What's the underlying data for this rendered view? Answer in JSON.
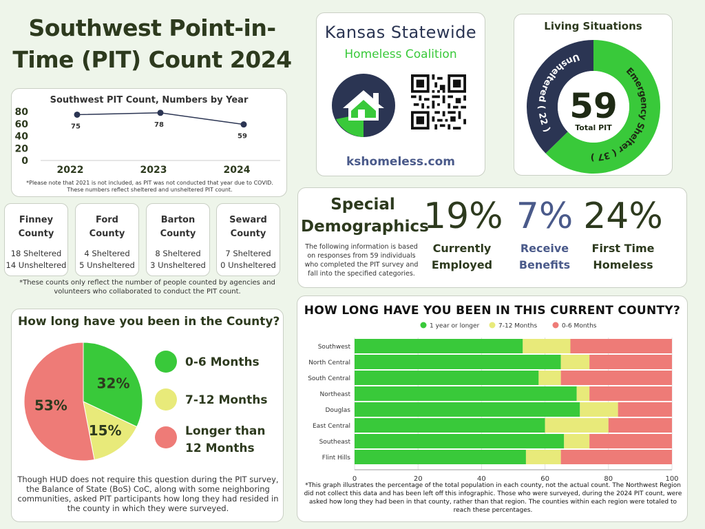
{
  "page_title": "Southwest Point-in-Time (PIT) Count 2024",
  "org": {
    "name_line1": "Kansas Statewide",
    "name_line2": "Homeless Coalition",
    "website": "kshomeless.com"
  },
  "pit_by_year": {
    "title": "Southwest PIT Count, Numbers by Year",
    "note": "*Please note that 2021 is not included, as PIT was not conducted that year due to COVID. These numbers reflect sheltered and unsheltered PIT count."
  },
  "counties": [
    {
      "name_line1": "Finney",
      "name_line2": "County",
      "sheltered": "18 Sheltered",
      "unsheltered": "14 Unsheltered"
    },
    {
      "name_line1": "Ford",
      "name_line2": "County",
      "sheltered": "4 Sheltered",
      "unsheltered": "5 Unsheltered"
    },
    {
      "name_line1": "Barton",
      "name_line2": "County",
      "sheltered": "8 Sheltered",
      "unsheltered": "3 Unsheltered"
    },
    {
      "name_line1": "Seward",
      "name_line2": "County",
      "sheltered": "7 Sheltered",
      "unsheltered": "0 Unsheltered"
    }
  ],
  "county_note": "*These counts only reflect the number of people counted by agencies and volunteers who collaborated to conduct the PIT count.",
  "living": {
    "title": "Living Situations",
    "total": "59",
    "total_label": "Total PIT"
  },
  "special": {
    "title_line1": "Special",
    "title_line2": "Demographics",
    "desc": "The following information is based on responses from 59 individuals who completed the PIT survey and fall into the specified categories.",
    "stats": [
      {
        "value": "19%",
        "label_line1": "Currently",
        "label_line2": "Employed",
        "color": "#2d3a1e"
      },
      {
        "value": "7%",
        "label_line1": "Receive",
        "label_line2": "Benefits",
        "color": "#4a5a8a"
      },
      {
        "value": "24%",
        "label_line1": "First Time",
        "label_line2": "Homeless",
        "color": "#2d3a1e"
      }
    ]
  },
  "county_time": {
    "title": "How long have you been in the County?",
    "note": "Though HUD does not require this question during the PIT survey, the Balance of State (BoS) CoC, along with some neighboring communities, asked PIT participants how long they had resided in the county in which they were surveyed."
  },
  "region_time": {
    "title": "HOW LONG HAVE YOU BEEN IN THIS CURRENT COUNTY?",
    "note": "*This graph illustrates the percentage of the total population in each county, not the actual count. The Northwest Region did not collect this data and has been left off this infographic. Those who were surveyed, during the 2024 PIT count, were asked how long they had been in that county, rather than that region. The counties within each region were totaled to reach these percentages."
  },
  "colors": {
    "green": "#39c93a",
    "yellow": "#e8ea7a",
    "red": "#ee7b77",
    "navy": "#2b3553",
    "line": "#2b3553",
    "bg": "#eef5ea"
  },
  "chart_data": [
    {
      "type": "line",
      "title": "Southwest PIT Count, Numbers by Year",
      "categories": [
        "2022",
        "2023",
        "2024"
      ],
      "values": [
        75,
        78,
        59
      ],
      "ylim": [
        0,
        80
      ],
      "yticks": [
        0,
        20,
        40,
        60,
        80
      ],
      "data_labels": [
        "75",
        "78",
        "59"
      ]
    },
    {
      "type": "pie",
      "title": "Living Situations",
      "slices": [
        {
          "label": "Emergency Shelter",
          "value": 37,
          "display": "Emergency Shelter ( 37 )",
          "color": "#39c93a"
        },
        {
          "label": "Unsheltered",
          "value": 22,
          "display": "Unsheltered ( 22 )",
          "color": "#2b3553"
        }
      ],
      "total": 59
    },
    {
      "type": "pie",
      "title": "How long have you been in the County?",
      "slices": [
        {
          "label": "0-6 Months",
          "value": 32,
          "display": "32%",
          "color": "#39c93a"
        },
        {
          "label": "7-12 Months",
          "value": 15,
          "display": "15%",
          "color": "#e8ea7a"
        },
        {
          "label": "Longer than 12 Months",
          "value": 53,
          "display": "53%",
          "color": "#ee7b77"
        }
      ],
      "legend": [
        {
          "line1": "0-6 Months",
          "line2": "",
          "color": "#39c93a"
        },
        {
          "line1": "7-12 Months",
          "line2": "",
          "color": "#e8ea7a"
        },
        {
          "line1": "Longer than",
          "line2": "12 Months",
          "color": "#ee7b77"
        }
      ]
    },
    {
      "type": "bar",
      "orientation": "horizontal-stacked",
      "title": "HOW LONG HAVE YOU BEEN IN THIS CURRENT COUNTY?",
      "categories": [
        "Southwest",
        "North Central",
        "South Central",
        "Northeast",
        "Douglas",
        "East Central",
        "Southeast",
        "Flint Hills"
      ],
      "series": [
        {
          "name": "1 year or longer",
          "color": "#39c93a",
          "values": [
            53,
            65,
            58,
            70,
            71,
            60,
            66,
            54
          ]
        },
        {
          "name": "7-12 Months",
          "color": "#e8ea7a",
          "values": [
            15,
            9,
            7,
            4,
            12,
            20,
            8,
            11
          ]
        },
        {
          "name": "0-6 Months",
          "color": "#ee7b77",
          "values": [
            32,
            26,
            35,
            26,
            17,
            20,
            26,
            35
          ]
        }
      ],
      "xlim": [
        0,
        100
      ],
      "xticks": [
        0,
        20,
        40,
        60,
        80,
        100
      ],
      "legend_position": "top"
    }
  ]
}
